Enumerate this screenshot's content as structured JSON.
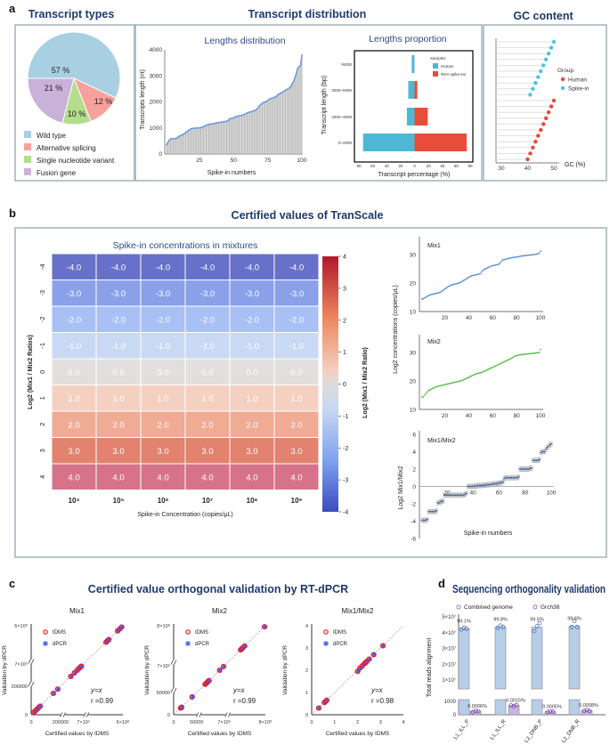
{
  "panel_labels": {
    "a": "a",
    "b": "b",
    "c": "c",
    "d": "d"
  },
  "titles": {
    "transcript_types": "Transcript types",
    "transcript_distribution": "Transcript distribution",
    "gc_content": "GC content",
    "certified_values": "Certified values of TranScale",
    "orthogonal_validation": "Certified value orthogonal validation by RT-dPCR",
    "sequencing_validation": "Sequencing orthogonality validation"
  },
  "colors": {
    "title": "#1f3a6e",
    "wild_type": "#a8cfe2",
    "alt_splicing": "#f7a09c",
    "snv": "#b4dd8c",
    "fusion": "#c9b2d8",
    "human": "#4db8d6",
    "spike_in": "#e84c3a",
    "mix1": "#5b8fd8",
    "mix2": "#58c04a",
    "ratio": "#1f4f9a"
  },
  "chart_data": [
    {
      "id": "pie",
      "type": "pie",
      "categories": [
        "Wild type",
        "Alternative splicing",
        "Single nucleotide variant",
        "Fusion gene"
      ],
      "values": [
        57,
        12,
        10,
        21
      ],
      "labels": [
        "57 %",
        "12 %",
        "10 %",
        "21 %"
      ],
      "colors": [
        "#a8cfe2",
        "#f7a09c",
        "#b4dd8c",
        "#c9b2d8"
      ],
      "legend": "bottom"
    },
    {
      "id": "lengths",
      "type": "bar",
      "title": "Lengths distribution",
      "xlabel": "Spike-in numbers",
      "ylabel": "Transcripts length (nt)",
      "ylim": [
        0,
        4000
      ],
      "yticks": [
        "0",
        "1000",
        "2000",
        "3000",
        "4000"
      ],
      "xticks": [
        "25",
        "50",
        "75",
        "100"
      ],
      "values": [
        350,
        450,
        520,
        580,
        590,
        590,
        590,
        600,
        620,
        680,
        700,
        720,
        750,
        780,
        820,
        860,
        900,
        940,
        970,
        980,
        985,
        990,
        995,
        1000,
        1005,
        1010,
        1030,
        1050,
        1080,
        1100,
        1120,
        1140,
        1150,
        1155,
        1160,
        1170,
        1190,
        1200,
        1200,
        1210,
        1220,
        1230,
        1240,
        1250,
        1260,
        1280,
        1350,
        1360,
        1370,
        1380,
        1420,
        1440,
        1450,
        1460,
        1470,
        1480,
        1500,
        1520,
        1540,
        1580,
        1600,
        1610,
        1620,
        1640,
        1660,
        1680,
        1720,
        1780,
        1850,
        1900,
        1950,
        1980,
        2000,
        2020,
        2050,
        2100,
        2120,
        2140,
        2150,
        2180,
        2200,
        2250,
        2300,
        2320,
        2350,
        2380,
        2420,
        2450,
        2480,
        2500,
        2550,
        2600,
        2700,
        2800,
        2950,
        3100,
        3300,
        3350,
        3400,
        3800
      ]
    },
    {
      "id": "proportion",
      "type": "bar",
      "orientation": "horizontal",
      "title": "Lengths proportion",
      "xlabel": "Transcript percentage (%)",
      "ylabel": "Transcript length (bp)",
      "xlim": [
        -80,
        80
      ],
      "xticks": [
        "80",
        "60",
        "40",
        "20",
        "0",
        "20",
        "40",
        "60",
        "80"
      ],
      "categories": [
        "0~2000",
        "2000~3000",
        "3000~5000",
        ">5000"
      ],
      "legend_title": "Samples",
      "series": [
        {
          "name": "Human",
          "values": [
            74,
            11,
            9,
            4
          ]
        },
        {
          "name": "RNA spike-ins",
          "values": [
            75,
            19,
            4,
            0
          ]
        }
      ]
    },
    {
      "id": "gc",
      "type": "scatter",
      "subtype": "lollipop",
      "xlabel": "GC (%)",
      "xticks": [
        "30",
        "40",
        "50"
      ],
      "xlim": [
        27,
        52
      ],
      "legend_title": "Group",
      "series": [
        {
          "name": "Human",
          "values": [
            50,
            49,
            48,
            47,
            46,
            45,
            44,
            43,
            42,
            41,
            40
          ]
        },
        {
          "name": "Spike-in",
          "values": [
            50,
            49,
            48,
            47,
            46,
            45,
            44,
            43,
            42,
            41
          ]
        }
      ]
    },
    {
      "id": "heatmap",
      "type": "heatmap",
      "title": "Spike-in concentrations in mixtures",
      "xlabel": "Spike-in Concentration  (copies/μL)",
      "ylabel": "Log2 (Mix1 / Mix2 Ratios)",
      "colorbar_label": "Log2 (Mix1 / Mix2 Ratio)",
      "colorbar_ticks": [
        "4",
        "3",
        "2",
        "1",
        "0",
        "-1",
        "-2",
        "-3",
        "-4"
      ],
      "columns": [
        "10⁴",
        "10⁵",
        "10⁶",
        "10⁷",
        "10⁸",
        "10⁹"
      ],
      "rows": [
        "-4",
        "-3",
        "-2",
        "-1",
        "0",
        "1",
        "2",
        "3",
        "4"
      ],
      "cells": [
        "-4.0",
        "-3.0",
        "-2.0",
        "-1.0",
        "0.0",
        "1.0",
        "2.0",
        "3.0",
        "4.0"
      ],
      "row_colors": [
        "#6771c9",
        "#8aa1e9",
        "#a8c0f3",
        "#c9d9f3",
        "#e1e0df",
        "#f4d0c1",
        "#f0ab95",
        "#e2826f",
        "#d6738a"
      ]
    },
    {
      "id": "mix1",
      "type": "scatter",
      "title": "Mix1",
      "ylabel": "Log2 concentrations (copies/μL)",
      "ylim": [
        10,
        35
      ],
      "yticks": [
        "10",
        "20",
        "30"
      ],
      "xticks": [
        "20",
        "40",
        "60",
        "80",
        "100"
      ],
      "values": [
        14.3,
        14.5,
        14.8,
        15.0,
        15.3,
        15.5,
        15.7,
        15.9,
        16.0,
        16.1,
        16.2,
        16.3,
        16.4,
        16.5,
        16.6,
        16.7,
        17.0,
        17.3,
        17.6,
        17.9,
        18.2,
        18.5,
        18.8,
        19.0,
        19.2,
        19.4,
        19.5,
        19.6,
        19.7,
        19.8,
        19.9,
        20.0,
        20.2,
        20.5,
        20.8,
        21.0,
        21.2,
        21.5,
        21.8,
        22.0,
        22.3,
        22.5,
        22.6,
        22.7,
        22.8,
        22.9,
        23.0,
        23.1,
        23.2,
        23.4,
        24.0,
        24.5,
        24.8,
        25.0,
        25.2,
        25.4,
        25.6,
        25.8,
        26.0,
        26.1,
        26.2,
        26.3,
        26.4,
        26.5,
        26.6,
        27.0,
        27.5,
        28.0,
        28.2,
        28.3,
        28.4,
        28.5,
        28.6,
        28.7,
        28.8,
        28.9,
        29.0,
        29.0,
        29.1,
        29.1,
        29.2,
        29.3,
        29.4,
        29.5,
        29.5,
        29.6,
        29.6,
        29.7,
        29.7,
        29.8,
        29.8,
        29.9,
        29.9,
        30.0,
        30.0,
        30.1,
        30.2,
        30.3,
        30.5,
        31.2
      ]
    },
    {
      "id": "mix2",
      "type": "scatter",
      "title": "Mix2",
      "ylim": [
        10,
        35
      ],
      "yticks": [
        "10",
        "20",
        "30"
      ],
      "xticks": [
        "20",
        "40",
        "60",
        "80",
        "100"
      ],
      "values": [
        14.3,
        14.5,
        15.0,
        15.5,
        16.0,
        16.5,
        16.8,
        17.0,
        17.2,
        17.4,
        17.6,
        17.8,
        18.0,
        18.1,
        18.2,
        18.3,
        18.4,
        18.5,
        18.6,
        18.7,
        18.8,
        18.9,
        19.0,
        19.1,
        19.2,
        19.3,
        19.4,
        19.5,
        19.6,
        19.7,
        19.8,
        19.9,
        20.0,
        20.1,
        20.3,
        20.5,
        20.7,
        20.9,
        21.1,
        21.3,
        21.5,
        21.7,
        21.9,
        22.1,
        22.3,
        22.5,
        22.6,
        22.7,
        22.8,
        22.9,
        23.0,
        23.2,
        23.4,
        23.6,
        23.8,
        24.0,
        24.2,
        24.4,
        24.6,
        24.8,
        25.0,
        25.2,
        25.4,
        25.6,
        25.8,
        26.0,
        26.2,
        26.4,
        26.6,
        26.8,
        27.0,
        27.2,
        27.4,
        27.6,
        27.8,
        28.0,
        28.3,
        28.6,
        28.8,
        28.9,
        29.0,
        29.1,
        29.2,
        29.2,
        29.3,
        29.3,
        29.4,
        29.4,
        29.5,
        29.5,
        29.6,
        29.6,
        29.7,
        29.7,
        29.8,
        29.8,
        29.9,
        29.9,
        30.0,
        31.0
      ]
    },
    {
      "id": "ratio",
      "type": "scatter",
      "title": "Mix1/Mix2",
      "xlabel": "Spike-in numbers",
      "ylabel": "Log2 Mix1/Mix2",
      "ylim": [
        -6,
        6
      ],
      "yticks": [
        "6",
        "4",
        "2",
        "0",
        "-2",
        "-4",
        "-6"
      ],
      "xticks": [
        "20",
        "40",
        "60",
        "80",
        "100"
      ],
      "values": [
        -3.9,
        -3.9,
        -3.9,
        -3.9,
        -3.8,
        -2.9,
        -2.9,
        -2.9,
        -2.9,
        -2.9,
        -2.9,
        -2.8,
        -1.9,
        -1.9,
        -1.8,
        -1.7,
        -1.7,
        -1.0,
        -1.0,
        -1.0,
        -1.0,
        -1.0,
        -1.0,
        -1.0,
        -1.0,
        -1.0,
        -1.0,
        -1.0,
        -1.0,
        -1.0,
        -1.0,
        -1.0,
        -1.0,
        -0.9,
        -0.8,
        0.0,
        0.0,
        0.0,
        0.0,
        0.0,
        0.05,
        0.05,
        0.05,
        0.1,
        0.1,
        0.1,
        0.1,
        0.15,
        0.15,
        0.15,
        0.2,
        0.2,
        0.2,
        0.25,
        0.25,
        0.3,
        0.3,
        0.3,
        0.35,
        0.4,
        0.4,
        0.45,
        0.5,
        0.9,
        1.0,
        1.0,
        1.0,
        1.0,
        1.0,
        1.0,
        1.0,
        1.0,
        1.0,
        1.0,
        1.1,
        2.0,
        2.0,
        2.0,
        2.0,
        2.0,
        2.0,
        2.0,
        2.0,
        2.1,
        2.1,
        3.0,
        3.0,
        3.0,
        3.0,
        3.0,
        3.1,
        3.9,
        4.0,
        4.0,
        4.0,
        4.3,
        4.5,
        4.6,
        4.8,
        4.9
      ]
    },
    {
      "id": "c_mix1",
      "type": "scatter",
      "title": "Mix1",
      "xlabel": "Certified values by IDMS",
      "ylabel": "Validation by dPCR",
      "axis": "broken",
      "ticks": [
        "0",
        "200000",
        "7×10⁵",
        "6×10⁸"
      ],
      "legend": [
        "IDMS",
        "dPCR"
      ],
      "annotation_fit": "y=x",
      "annotation_r": "r =0.99",
      "x": [
        20000,
        30000,
        40000,
        50000,
        60000,
        150000,
        180000,
        420000,
        500000,
        560000,
        600000,
        630000,
        650000,
        350000000,
        370000000,
        390000000,
        520000000,
        550000000,
        580000000
      ],
      "y": [
        20000,
        30000,
        40000,
        50000,
        60000,
        150000,
        180000,
        420000,
        500000,
        560000,
        600000,
        630000,
        650000,
        350000000,
        370000000,
        390000000,
        520000000,
        550000000,
        580000000
      ]
    },
    {
      "id": "c_mix2",
      "type": "scatter",
      "title": "Mix2",
      "xlabel": "Certified values by IDMS",
      "ylabel": "Validation by dPCR",
      "axis": "broken",
      "ticks": [
        "0",
        "50000",
        "7×10⁶",
        "8×10⁸"
      ],
      "legend": [
        "IDMS",
        "dPCR"
      ],
      "annotation_fit": "y=x",
      "annotation_r": "r =0.99",
      "x": [
        15000,
        16000,
        17000,
        40000,
        2000000,
        2300000,
        2600000,
        2800000,
        3000000,
        5800000,
        6800000,
        300000000,
        320000000,
        340000000,
        380000000,
        780000000
      ],
      "y": [
        15000,
        16000,
        17000,
        40000,
        2000000,
        2300000,
        2600000,
        2800000,
        3000000,
        5800000,
        6800000,
        300000000,
        320000000,
        340000000,
        380000000,
        780000000
      ]
    },
    {
      "id": "c_ratio",
      "type": "scatter",
      "title": "Mix1/Mix2",
      "xlabel": "Certified values by IDMS",
      "ylabel": "Validation by dPCR",
      "xlim": [
        0,
        4
      ],
      "ylim": [
        0,
        4
      ],
      "ticks": [
        "0",
        "1",
        "2",
        "3",
        "4"
      ],
      "legend": [
        "IDMS",
        "dPCR"
      ],
      "annotation_fit": "y=x",
      "annotation_r": "r =0.98",
      "x": [
        0.3,
        0.55,
        0.6,
        0.65,
        2.0,
        2.1,
        2.2,
        2.3,
        2.35,
        2.4,
        2.5,
        2.7,
        3.1
      ],
      "y": [
        0.3,
        0.55,
        0.6,
        0.65,
        1.95,
        2.1,
        2.2,
        2.3,
        2.35,
        2.4,
        2.5,
        2.7,
        3.1
      ]
    },
    {
      "id": "sequencing",
      "type": "bar",
      "ylabel": "Total reads alignment",
      "axis": "broken",
      "yticks_top": [
        "5×10⁷",
        "4×10⁷",
        "3×10⁷",
        "2×10⁷",
        "1×10⁷"
      ],
      "yticks_bottom": [
        "1000",
        "0"
      ],
      "categories": [
        "L1_ILL_P",
        "L1_ILL_R",
        "L2_DNB_P",
        "L2_DNB_R"
      ],
      "series": [
        {
          "name": "Combined genome",
          "values": [
            42500000,
            43500000,
            43500000,
            44000000
          ],
          "labels": [
            "99.1%",
            "99.8%",
            "99.5%",
            "99.6%"
          ],
          "points": [
            [
              42000000,
              43000000,
              42500000
            ],
            [
              43000000,
              44500000,
              43500000
            ],
            [
              41000000,
              44000000,
              46000000
            ],
            [
              43500000,
              47500000,
              43500000
            ]
          ]
        },
        {
          "name": "Grch38",
          "values": [
            280,
            700,
            230,
            320
          ],
          "labels": [
            "0.0006%",
            "0.0015%",
            "0.0005%",
            "0.0008%"
          ],
          "points": [
            [
              200,
              300,
              260
            ],
            [
              700,
              650,
              720
            ],
            [
              200,
              250,
              230
            ],
            [
              300,
              350,
              280
            ]
          ]
        }
      ]
    }
  ]
}
